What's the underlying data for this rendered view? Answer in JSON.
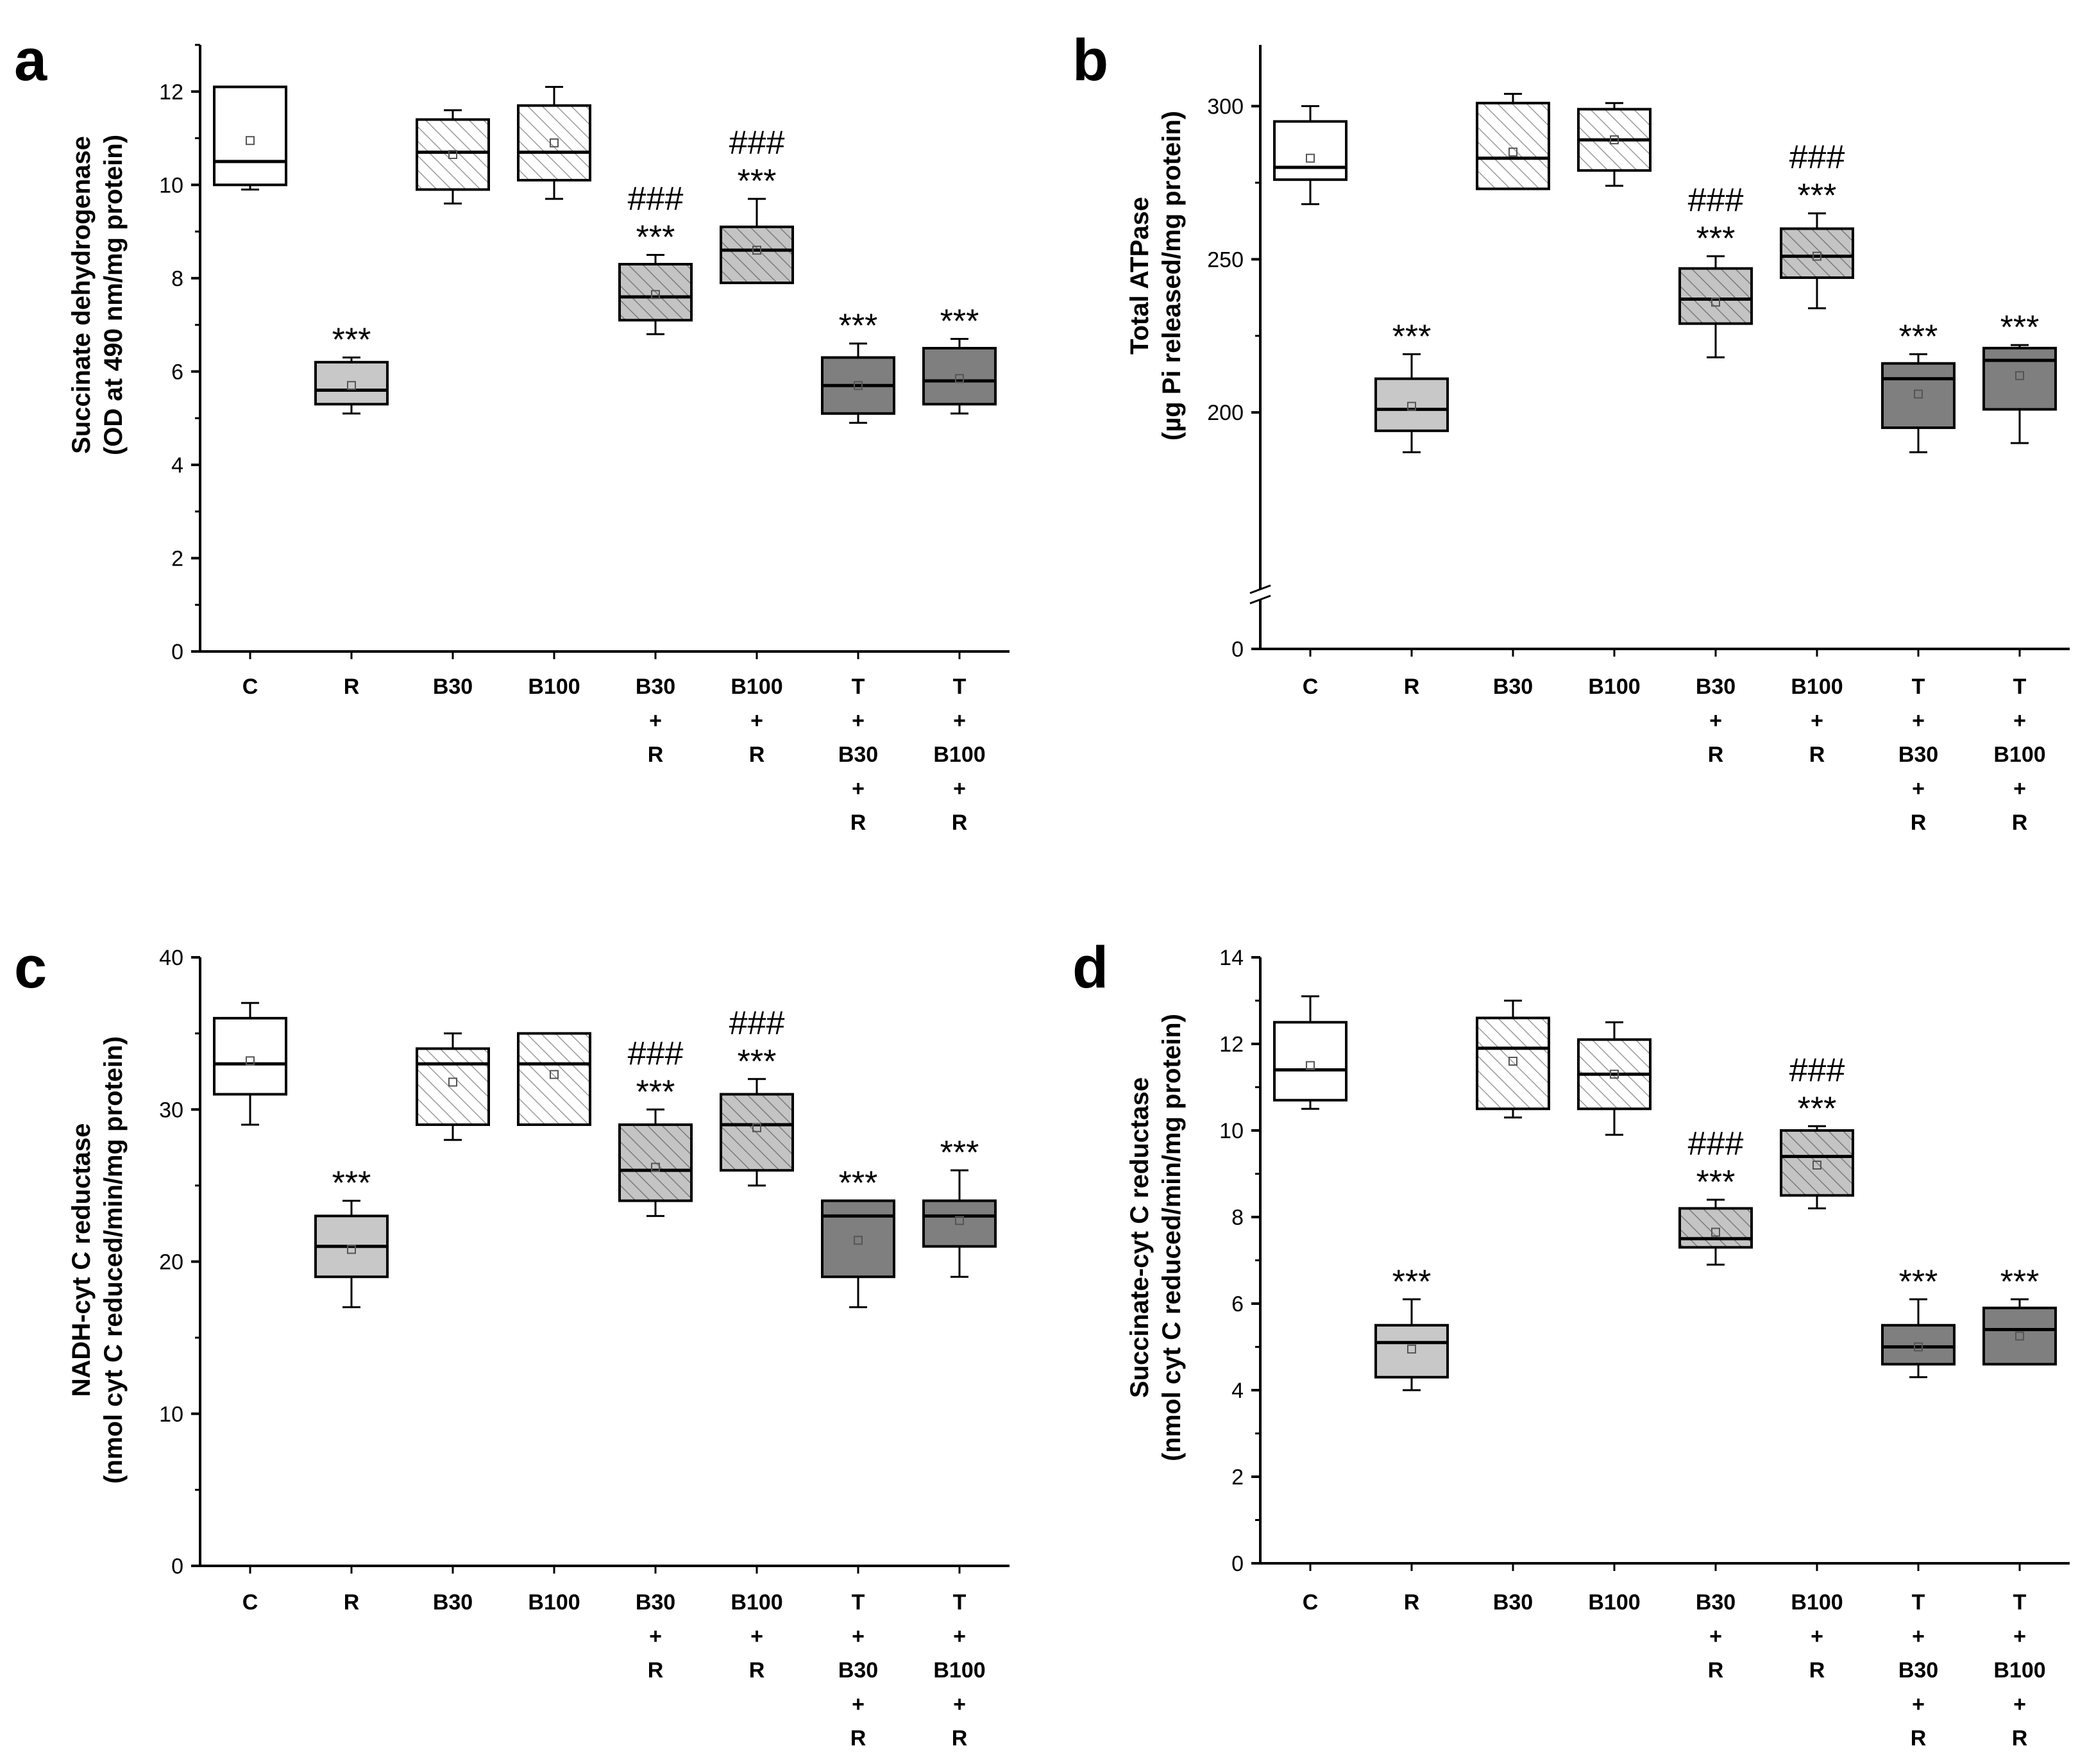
{
  "figure": {
    "colors": {
      "white": "#ffffff",
      "light_gray": "#c8c8c8",
      "hatch_fill": "#ffffff",
      "hatch_line": "#9a9a9a",
      "hatch_gray_fill": "#c4c4c4",
      "hatch_gray_line": "#7a7a7a",
      "dark_gray": "#7f7f7f",
      "axis": "#000000"
    }
  },
  "chart_data": [
    {
      "type": "box",
      "panel": "a",
      "ylabel_line1": "Succinate dehydrogenase",
      "ylabel_line2": "(OD at 490 nm/mg protein)",
      "ylim": [
        0,
        13
      ],
      "yticks": [
        0,
        2,
        4,
        6,
        8,
        10,
        12
      ],
      "yticks_text": [
        "0",
        "2",
        "4",
        "6",
        "8",
        "10",
        "12"
      ],
      "categories": [
        {
          "lines": [
            "C"
          ],
          "style": "white",
          "min": 9.9,
          "q1": 10.0,
          "median": 10.5,
          "q3": 12.1,
          "max": 12.1,
          "mean": 10.95,
          "sig": [],
          "whiskers": false
        },
        {
          "lines": [
            "R"
          ],
          "style": "light_gray",
          "min": 5.1,
          "q1": 5.3,
          "median": 5.6,
          "q3": 6.2,
          "max": 6.3,
          "mean": 5.7,
          "sig": [
            "***"
          ]
        },
        {
          "lines": [
            "B30"
          ],
          "style": "hatch",
          "min": 9.6,
          "q1": 9.9,
          "median": 10.7,
          "q3": 11.4,
          "max": 11.6,
          "mean": 10.65,
          "sig": []
        },
        {
          "lines": [
            "B100"
          ],
          "style": "hatch",
          "min": 9.7,
          "q1": 10.1,
          "median": 10.7,
          "q3": 11.7,
          "max": 12.1,
          "mean": 10.9,
          "sig": []
        },
        {
          "lines": [
            "B30",
            "+",
            "R"
          ],
          "style": "hatch_gray",
          "min": 6.8,
          "q1": 7.1,
          "median": 7.6,
          "q3": 8.3,
          "max": 8.5,
          "mean": 7.65,
          "sig": [
            "###",
            "***"
          ]
        },
        {
          "lines": [
            "B100",
            "+",
            "R"
          ],
          "style": "hatch_gray",
          "min": 7.9,
          "q1": 7.9,
          "median": 8.6,
          "q3": 9.1,
          "max": 9.7,
          "mean": 8.6,
          "sig": [
            "###",
            "***"
          ]
        },
        {
          "lines": [
            "T",
            "+",
            "B30",
            "+",
            "R"
          ],
          "style": "dark_gray",
          "min": 4.9,
          "q1": 5.1,
          "median": 5.7,
          "q3": 6.3,
          "max": 6.6,
          "mean": 5.7,
          "sig": [
            "***"
          ]
        },
        {
          "lines": [
            "T",
            "+",
            "B100",
            "+",
            "R"
          ],
          "style": "dark_gray",
          "min": 5.1,
          "q1": 5.3,
          "median": 5.8,
          "q3": 6.5,
          "max": 6.7,
          "mean": 5.85,
          "sig": [
            "***"
          ]
        }
      ]
    },
    {
      "type": "box",
      "panel": "b",
      "ylabel_line1": "Total ATPase",
      "ylabel_line2": "(µg Pi released/mg protein)",
      "ylim": [
        0,
        320
      ],
      "axis_break": true,
      "yticks": [
        0,
        200,
        250,
        300
      ],
      "yticks_text": [
        "0",
        "200",
        "250",
        "300"
      ],
      "categories": [
        {
          "lines": [
            "C"
          ],
          "style": "white",
          "min": 268,
          "q1": 276,
          "median": 280,
          "q3": 295,
          "max": 300,
          "mean": 283,
          "sig": []
        },
        {
          "lines": [
            "R"
          ],
          "style": "light_gray",
          "min": 187,
          "q1": 194,
          "median": 201,
          "q3": 211,
          "max": 219,
          "mean": 202,
          "sig": [
            "***"
          ]
        },
        {
          "lines": [
            "B30"
          ],
          "style": "hatch",
          "min": 273,
          "q1": 273,
          "median": 283,
          "q3": 301,
          "max": 304,
          "mean": 285,
          "sig": []
        },
        {
          "lines": [
            "B100"
          ],
          "style": "hatch",
          "min": 274,
          "q1": 279,
          "median": 289,
          "q3": 299,
          "max": 301,
          "mean": 289,
          "sig": []
        },
        {
          "lines": [
            "B30",
            "+",
            "R"
          ],
          "style": "hatch_gray",
          "min": 218,
          "q1": 229,
          "median": 237,
          "q3": 247,
          "max": 251,
          "mean": 236,
          "sig": [
            "###",
            "***"
          ]
        },
        {
          "lines": [
            "B100",
            "+",
            "R"
          ],
          "style": "hatch_gray",
          "min": 234,
          "q1": 244,
          "median": 251,
          "q3": 260,
          "max": 265,
          "mean": 251,
          "sig": [
            "###",
            "***"
          ]
        },
        {
          "lines": [
            "T",
            "+",
            "B30",
            "+",
            "R"
          ],
          "style": "dark_gray",
          "min": 187,
          "q1": 195,
          "median": 211,
          "q3": 216,
          "max": 219,
          "mean": 206,
          "sig": [
            "***"
          ]
        },
        {
          "lines": [
            "T",
            "+",
            "B100",
            "+",
            "R"
          ],
          "style": "dark_gray",
          "min": 190,
          "q1": 201,
          "median": 217,
          "q3": 221,
          "max": 222,
          "mean": 212,
          "sig": [
            "***"
          ]
        }
      ]
    },
    {
      "type": "box",
      "panel": "c",
      "ylabel_line1": "NADH-cyt C reductase",
      "ylabel_line2": "(nmol cyt C reduced/min/mg protein)",
      "ylim": [
        0,
        40
      ],
      "yticks": [
        0,
        10,
        20,
        30,
        40
      ],
      "yticks_text": [
        "0",
        "10",
        "20",
        "30",
        "40"
      ],
      "categories": [
        {
          "lines": [
            "C"
          ],
          "style": "white",
          "min": 29,
          "q1": 31,
          "median": 33,
          "q3": 36,
          "max": 37,
          "mean": 33.2,
          "sig": []
        },
        {
          "lines": [
            "R"
          ],
          "style": "light_gray",
          "min": 17,
          "q1": 19,
          "median": 21,
          "q3": 23,
          "max": 24,
          "mean": 20.8,
          "sig": [
            "***"
          ]
        },
        {
          "lines": [
            "B30"
          ],
          "style": "hatch",
          "min": 28,
          "q1": 29,
          "median": 33,
          "q3": 34,
          "max": 35,
          "mean": 31.8,
          "sig": []
        },
        {
          "lines": [
            "B100"
          ],
          "style": "hatch",
          "min": 29,
          "q1": 29,
          "median": 33,
          "q3": 35,
          "max": 35,
          "mean": 32.3,
          "sig": []
        },
        {
          "lines": [
            "B30",
            "+",
            "R"
          ],
          "style": "hatch_gray",
          "min": 23,
          "q1": 24,
          "median": 26,
          "q3": 29,
          "max": 30,
          "mean": 26.2,
          "sig": [
            "###",
            "***"
          ]
        },
        {
          "lines": [
            "B100",
            "+",
            "R"
          ],
          "style": "hatch_gray",
          "min": 25,
          "q1": 26,
          "median": 29,
          "q3": 31,
          "max": 32,
          "mean": 28.8,
          "sig": [
            "###",
            "***"
          ]
        },
        {
          "lines": [
            "T",
            "+",
            "B30",
            "+",
            "R"
          ],
          "style": "dark_gray",
          "min": 17,
          "q1": 19,
          "median": 23,
          "q3": 24,
          "max": 24,
          "mean": 21.4,
          "sig": [
            "***"
          ]
        },
        {
          "lines": [
            "T",
            "+",
            "B100",
            "+",
            "R"
          ],
          "style": "dark_gray",
          "min": 19,
          "q1": 21,
          "median": 23,
          "q3": 24,
          "max": 26,
          "mean": 22.7,
          "sig": [
            "***"
          ]
        }
      ]
    },
    {
      "type": "box",
      "panel": "d",
      "ylabel_line1": "Succinate-cyt C reductase",
      "ylabel_line2": "(nmol cyt C reduced/min/mg protein)",
      "ylim": [
        0,
        14
      ],
      "yticks": [
        0,
        2,
        4,
        6,
        8,
        10,
        12,
        14
      ],
      "yticks_text": [
        "0",
        "2",
        "4",
        "6",
        "8",
        "10",
        "12",
        "14"
      ],
      "categories": [
        {
          "lines": [
            "C"
          ],
          "style": "white",
          "min": 10.5,
          "q1": 10.7,
          "median": 11.4,
          "q3": 12.5,
          "max": 13.1,
          "mean": 11.5,
          "sig": []
        },
        {
          "lines": [
            "R"
          ],
          "style": "light_gray",
          "min": 4.0,
          "q1": 4.3,
          "median": 5.1,
          "q3": 5.5,
          "max": 6.1,
          "mean": 4.95,
          "sig": [
            "***"
          ]
        },
        {
          "lines": [
            "B30"
          ],
          "style": "hatch",
          "min": 10.3,
          "q1": 10.5,
          "median": 11.9,
          "q3": 12.6,
          "max": 13.0,
          "mean": 11.6,
          "sig": []
        },
        {
          "lines": [
            "B100"
          ],
          "style": "hatch",
          "min": 9.9,
          "q1": 10.5,
          "median": 11.3,
          "q3": 12.1,
          "max": 12.5,
          "mean": 11.3,
          "sig": []
        },
        {
          "lines": [
            "B30",
            "+",
            "R"
          ],
          "style": "hatch_gray",
          "min": 6.9,
          "q1": 7.3,
          "median": 7.5,
          "q3": 8.2,
          "max": 8.4,
          "mean": 7.65,
          "sig": [
            "###",
            "***"
          ]
        },
        {
          "lines": [
            "B100",
            "+",
            "R"
          ],
          "style": "hatch_gray",
          "min": 8.2,
          "q1": 8.5,
          "median": 9.4,
          "q3": 10.0,
          "max": 10.1,
          "mean": 9.2,
          "sig": [
            "###",
            "***"
          ]
        },
        {
          "lines": [
            "T",
            "+",
            "B30",
            "+",
            "R"
          ],
          "style": "dark_gray",
          "min": 4.3,
          "q1": 4.6,
          "median": 5.0,
          "q3": 5.5,
          "max": 6.1,
          "mean": 5.0,
          "sig": [
            "***"
          ]
        },
        {
          "lines": [
            "T",
            "+",
            "B100",
            "+",
            "R"
          ],
          "style": "dark_gray",
          "min": 4.6,
          "q1": 4.6,
          "median": 5.4,
          "q3": 5.9,
          "max": 6.1,
          "mean": 5.25,
          "sig": [
            "***"
          ]
        }
      ]
    }
  ]
}
